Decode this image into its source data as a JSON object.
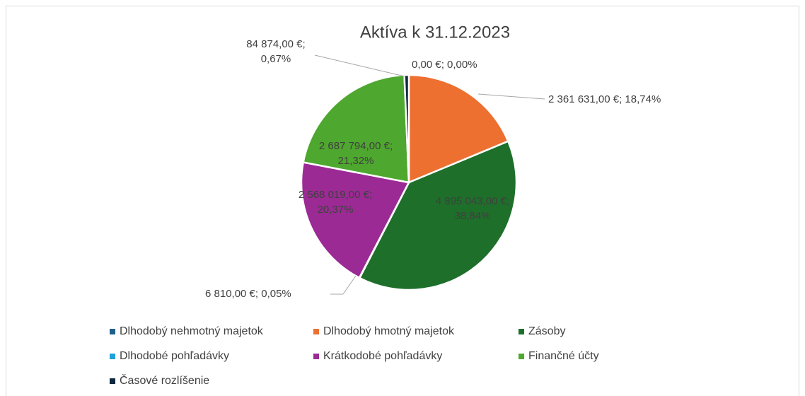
{
  "chart_data": {
    "type": "pie",
    "title": "Aktíva k 31.12.2023",
    "categories": [
      "Dlhodobý nehmotný majetok",
      "Dlhodobý hmotný majetok",
      "Zásoby",
      "Dlhodobé pohľadávky",
      "Krátkodobé pohľadávky",
      "Finančné účty",
      "Časové rozlíšenie"
    ],
    "values": [
      0,
      2361631,
      4895043,
      6810,
      2568019,
      2687794,
      84874
    ],
    "value_labels": [
      "0,00 €; 0,00%",
      "2 361 631,00 €; 18,74%",
      "4 895 043,00 €; 38,84%",
      "6 810,00 €; 0,05%",
      "2 568 019,00 €; 20,37%",
      "2 687 794,00 €; 21,32%",
      "84 874,00 €; 0,67%"
    ],
    "colors": [
      "#1f5f8b",
      "#ed7031",
      "#1e6f2a",
      "#1ea0d8",
      "#9b2a94",
      "#4ea72e",
      "#0e2841"
    ],
    "legend": "bottom"
  }
}
